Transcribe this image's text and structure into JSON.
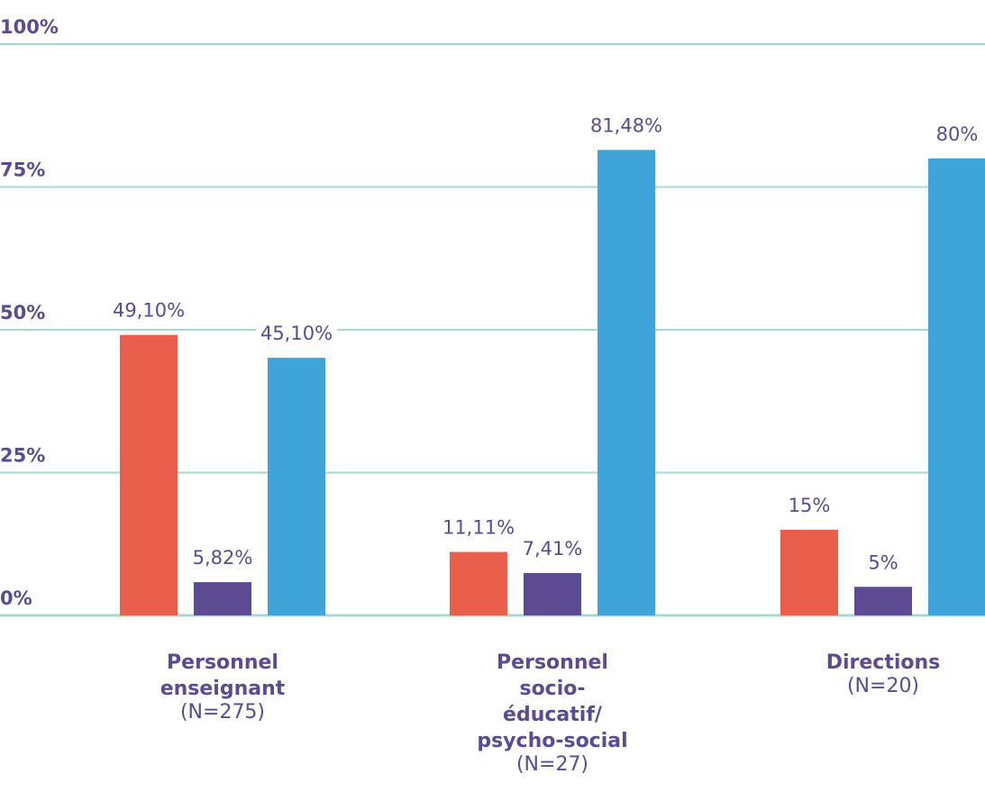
{
  "chart_data": {
    "type": "bar",
    "ylim": [
      0,
      100
    ],
    "yticks": [
      "0%",
      "25%",
      "50%",
      "75%",
      "100%"
    ],
    "grid": true,
    "categories": [
      {
        "name": [
          "Personnel",
          "enseignant"
        ],
        "n": "(N=275)"
      },
      {
        "name": [
          "Personnel",
          "socio-",
          "éducatif/",
          "psycho-social"
        ],
        "n": "(N=27)"
      },
      {
        "name": [
          "Directions"
        ],
        "n": "(N=20)"
      }
    ],
    "series": [
      {
        "color": "#e95f4b",
        "values": [
          49.1,
          11.11,
          15
        ],
        "labels": [
          "49,10%",
          "11,11%",
          "15%"
        ]
      },
      {
        "color": "#5c4a93",
        "values": [
          5.82,
          7.41,
          5
        ],
        "labels": [
          "5,82%",
          "7,41%",
          "5%"
        ]
      },
      {
        "color": "#3ea4da",
        "values": [
          45.1,
          81.48,
          80
        ],
        "labels": [
          "45,10%",
          "81,48%",
          "80%"
        ]
      }
    ],
    "gridline_color": "#a8d8cc"
  }
}
